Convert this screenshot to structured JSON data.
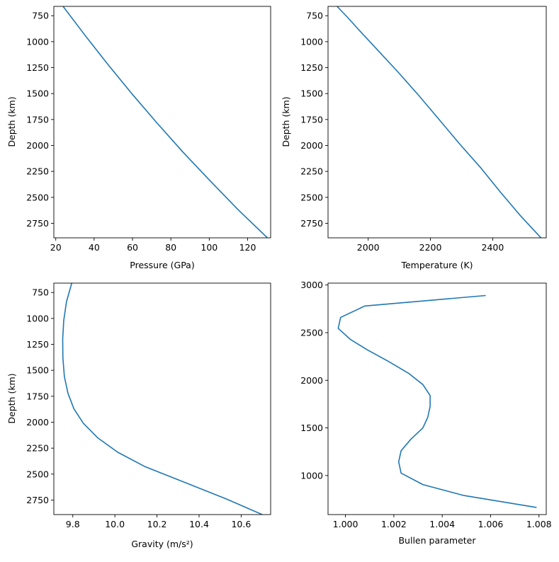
{
  "line_color": "#1f77b4",
  "chart_data": [
    {
      "type": "line",
      "xlabel": "Pressure (GPa)",
      "ylabel": "Depth (km)",
      "xlim": [
        19,
        132
      ],
      "ylim": [
        2890,
        660
      ],
      "y_inverted": true,
      "xticks": [
        20,
        40,
        60,
        80,
        100,
        120
      ],
      "yticks": [
        750,
        1000,
        1250,
        1500,
        1750,
        2000,
        2250,
        2500,
        2750
      ],
      "series": [
        {
          "x": [
            23.8,
            35.3,
            47.2,
            59.6,
            72.6,
            86.1,
            100.4,
            115.1,
            130.3
          ],
          "y": [
            660,
            940,
            1220,
            1500,
            1780,
            2060,
            2340,
            2620,
            2890
          ]
        }
      ]
    },
    {
      "type": "line",
      "xlabel": "Temperature (K)",
      "ylabel": "Depth (km)",
      "xlim": [
        1871,
        2572
      ],
      "ylim": [
        2890,
        660
      ],
      "y_inverted": true,
      "xticks": [
        2000,
        2200,
        2400
      ],
      "yticks": [
        750,
        1000,
        1250,
        1500,
        1750,
        2000,
        2250,
        2500,
        2750
      ],
      "series": [
        {
          "x": [
            1900,
            1935,
            1968,
            2030,
            2095,
            2160,
            2225,
            2295,
            2360,
            2425,
            2490,
            2555
          ],
          "y": [
            660,
            770,
            880,
            1080,
            1290,
            1510,
            1740,
            1990,
            2210,
            2450,
            2680,
            2890
          ]
        }
      ]
    },
    {
      "type": "line",
      "xlabel": "Gravity (m/s²)",
      "ylabel": "Depth (km)",
      "xlim": [
        9.71,
        10.74
      ],
      "ylim": [
        2890,
        660
      ],
      "y_inverted": true,
      "xticks": [
        9.8,
        10.0,
        10.2,
        10.4,
        10.6
      ],
      "xtick_labels": [
        "9.8",
        "10.0",
        "10.2",
        "10.4",
        "10.6"
      ],
      "yticks": [
        750,
        1000,
        1250,
        1500,
        1750,
        2000,
        2250,
        2500,
        2750
      ],
      "series": [
        {
          "x": [
            9.795,
            9.77,
            9.757,
            9.752,
            9.753,
            9.76,
            9.777,
            9.805,
            9.85,
            9.918,
            10.014,
            10.145,
            10.32,
            10.53,
            10.7
          ],
          "y": [
            660,
            840,
            1020,
            1200,
            1380,
            1560,
            1720,
            1870,
            2010,
            2150,
            2290,
            2430,
            2570,
            2740,
            2890
          ]
        }
      ]
    },
    {
      "type": "line",
      "xlabel": "Bullen parameter",
      "ylabel": "",
      "xlim": [
        0.99928,
        1.0083
      ],
      "ylim": [
        590,
        3020
      ],
      "y_inverted": false,
      "xticks": [
        1.0,
        1.002,
        1.004,
        1.006,
        1.008
      ],
      "xtick_labels": [
        "1.000",
        "1.002",
        "1.004",
        "1.006",
        "1.008"
      ],
      "yticks": [
        1000,
        1500,
        2000,
        2500,
        3000
      ],
      "series": [
        {
          "x": [
            1.0079,
            1.0049,
            1.0032,
            1.0023,
            1.0022,
            1.0023,
            1.0027,
            1.0032,
            1.0034,
            1.0035,
            1.0035,
            1.0032,
            1.0026,
            1.0018,
            1.0009,
            1.0002,
            0.9997,
            0.9998,
            1.0008,
            1.0058
          ],
          "y": [
            665,
            790,
            905,
            1025,
            1145,
            1260,
            1380,
            1500,
            1610,
            1725,
            1840,
            1955,
            2075,
            2195,
            2320,
            2430,
            2545,
            2660,
            2780,
            2890
          ]
        }
      ]
    }
  ]
}
